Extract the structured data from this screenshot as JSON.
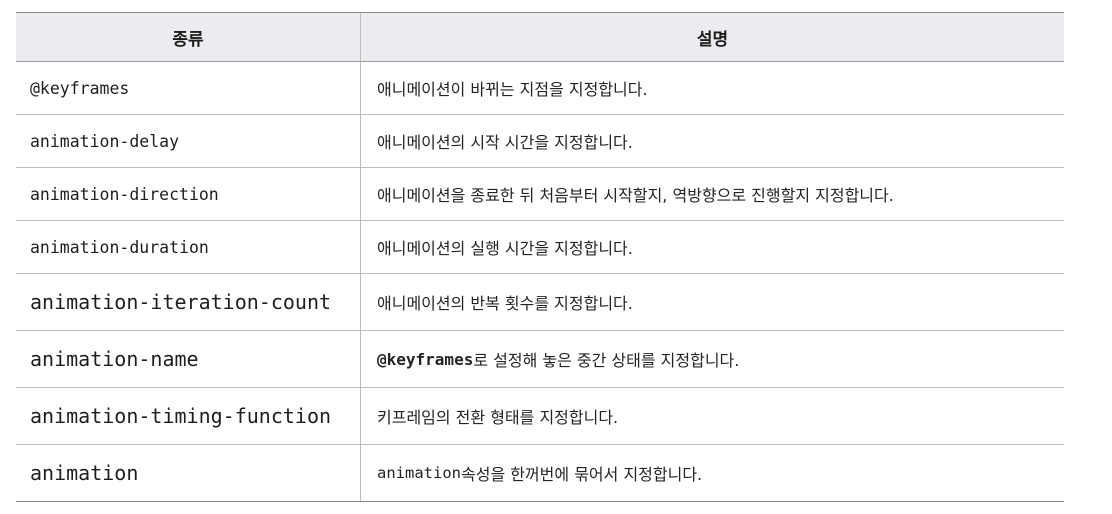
{
  "header": {
    "col_type": "종류",
    "col_desc": "설명"
  },
  "rows": [
    {
      "name": "@keyframes",
      "desc": "애니메이션이 바뀌는 지점을 지정합니다."
    },
    {
      "name": "animation-delay",
      "desc": "애니메이션의 시작 시간을 지정합니다."
    },
    {
      "name": "animation-direction",
      "desc": "애니메이션을 종료한 뒤 처음부터 시작할지, 역방향으로 진행할지 지정합니다."
    },
    {
      "name": "animation-duration",
      "desc": "애니메이션의 실행 시간을 지정합니다."
    },
    {
      "name": "animation-iteration-count",
      "desc": "애니메이션의 반복 횟수를 지정합니다."
    },
    {
      "name": "animation-name",
      "desc_code": "@keyframes",
      "desc_rest": "로 설정해 놓은 중간 상태를 지정합니다."
    },
    {
      "name": "animation-timing-function",
      "desc": "키프레임의 전환 형태를 지정합니다."
    },
    {
      "name": "animation",
      "desc_code": "animation",
      "desc_rest": " 속성을 한꺼번에 묶어서 지정합니다."
    }
  ]
}
